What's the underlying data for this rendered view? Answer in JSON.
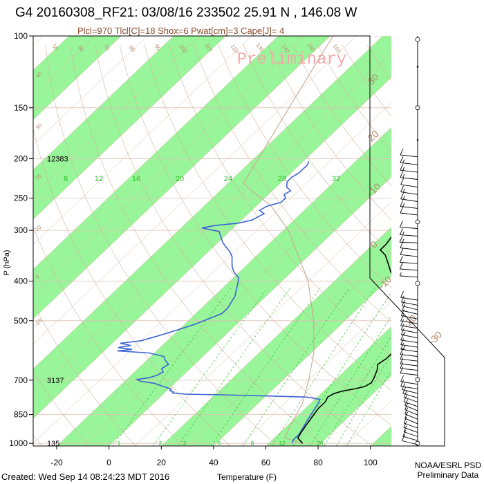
{
  "header": {
    "title": "G4 20160308_RF21: 03/08/16 233502  25.91 N , 146.08 W",
    "indices": "Plcl=970 Tlcl[C]=18 Shox=6 Pwat[cm]=3 Cape[J]= 4"
  },
  "watermark": "Preliminary",
  "footer": {
    "created": "Created: Wed Sep 14 08:24:23 MDT 2016",
    "credit_line1": "NOAA/ESRL PSD",
    "credit_line2": "Preliminary Data"
  },
  "colors": {
    "band": "#99f599",
    "temperature": "#000000",
    "dewpoint": "#3a63d6",
    "isotherm": "#d9b8a0",
    "dry_adiabat": "#d2b39a",
    "mixing_ratio": "#34c234",
    "isobar": "#dcc2b0",
    "parcel": "#c8a98f",
    "label_brown": "#b58b6d",
    "label_green": "#20c020",
    "watermark": "#f2a9a9",
    "wind": "#000000"
  },
  "chart_data": {
    "type": "skew-t",
    "xlabel": "Temperature (F)",
    "ylabel": "P (hPa)",
    "x_ticks": [
      -20,
      0,
      20,
      40,
      60,
      80,
      100
    ],
    "xlim": [
      -29,
      108
    ],
    "y_ticks": [
      100,
      150,
      200,
      250,
      300,
      400,
      500,
      700,
      850,
      1000
    ],
    "ylim": [
      1015,
      100
    ],
    "y_scale": "log",
    "height_labels": [
      {
        "p": 200,
        "text": "12383"
      },
      {
        "p": 700,
        "text": "3137"
      },
      {
        "p": 1000,
        "text": "135"
      }
    ],
    "mixing_ratio_top_labels": [
      "8",
      "12",
      "16",
      "20",
      "24",
      "28",
      "32"
    ],
    "mixing_ratio_bottom_labels": [
      "1",
      "2",
      "3",
      "5",
      "8",
      "12",
      "20"
    ],
    "dry_adiabat_labels": [
      "50",
      "60",
      "70",
      "80",
      "90",
      "100",
      "110",
      "120",
      "130",
      "140",
      "150",
      "160"
    ],
    "isotherm_labels": [
      "30",
      "20",
      "10",
      "0",
      "-10",
      "-20",
      "-30",
      "40",
      "30",
      "20",
      "10",
      "0",
      "-10"
    ],
    "temperature_profile": [
      {
        "p": 1000,
        "t": 73
      },
      {
        "p": 985,
        "t": 71
      },
      {
        "p": 970,
        "t": 69
      },
      {
        "p": 940,
        "t": 68
      },
      {
        "p": 900,
        "t": 67
      },
      {
        "p": 860,
        "t": 66
      },
      {
        "p": 820,
        "t": 65
      },
      {
        "p": 790,
        "t": 65
      },
      {
        "p": 770,
        "t": 64
      },
      {
        "p": 755,
        "t": 65
      },
      {
        "p": 745,
        "t": 67
      },
      {
        "p": 735,
        "t": 71
      },
      {
        "p": 725,
        "t": 74
      },
      {
        "p": 710,
        "t": 75
      },
      {
        "p": 690,
        "t": 74
      },
      {
        "p": 660,
        "t": 72
      },
      {
        "p": 640,
        "t": 70
      },
      {
        "p": 620,
        "t": 71
      },
      {
        "p": 600,
        "t": 71
      },
      {
        "p": 580,
        "t": 72
      },
      {
        "p": 560,
        "t": 72
      },
      {
        "p": 540,
        "t": 72
      },
      {
        "p": 520,
        "t": 70
      },
      {
        "p": 500,
        "t": 66
      },
      {
        "p": 480,
        "t": 62
      },
      {
        "p": 460,
        "t": 58
      },
      {
        "p": 440,
        "t": 53
      },
      {
        "p": 420,
        "t": 50
      },
      {
        "p": 400,
        "t": 44
      },
      {
        "p": 380,
        "t": 38
      },
      {
        "p": 360,
        "t": 33
      },
      {
        "p": 345,
        "t": 29
      },
      {
        "p": 335,
        "t": 25
      },
      {
        "p": 325,
        "t": 25
      },
      {
        "p": 310,
        "t": 24
      },
      {
        "p": 295,
        "t": 21
      },
      {
        "p": 282,
        "t": 19
      },
      {
        "p": 268,
        "t": 17
      },
      {
        "p": 255,
        "t": 15
      },
      {
        "p": 245,
        "t": 14
      },
      {
        "p": 235,
        "t": 12
      },
      {
        "p": 225,
        "t": 9
      },
      {
        "p": 215,
        "t": 7
      },
      {
        "p": 205,
        "t": 6
      },
      {
        "p": 195,
        "t": 4
      },
      {
        "p": 185,
        "t": 1
      }
    ],
    "dewpoint_profile": [
      {
        "p": 1000,
        "t": 69
      },
      {
        "p": 980,
        "t": 68
      },
      {
        "p": 950,
        "t": 68
      },
      {
        "p": 920,
        "t": 67
      },
      {
        "p": 890,
        "t": 66
      },
      {
        "p": 860,
        "t": 65
      },
      {
        "p": 830,
        "t": 64
      },
      {
        "p": 800,
        "t": 63
      },
      {
        "p": 780,
        "t": 62
      },
      {
        "p": 770,
        "t": 56
      },
      {
        "p": 765,
        "t": 40
      },
      {
        "p": 760,
        "t": 22
      },
      {
        "p": 757,
        "t": 8
      },
      {
        "p": 752,
        "t": 3
      },
      {
        "p": 748,
        "t": 3
      },
      {
        "p": 742,
        "t": 1
      },
      {
        "p": 736,
        "t": 1
      },
      {
        "p": 728,
        "t": -2
      },
      {
        "p": 720,
        "t": -5
      },
      {
        "p": 712,
        "t": -8
      },
      {
        "p": 704,
        "t": -14
      },
      {
        "p": 697,
        "t": -16
      },
      {
        "p": 690,
        "t": -12
      },
      {
        "p": 680,
        "t": -10
      },
      {
        "p": 668,
        "t": -9
      },
      {
        "p": 655,
        "t": -11
      },
      {
        "p": 640,
        "t": -10
      },
      {
        "p": 625,
        "t": -13
      },
      {
        "p": 612,
        "t": -15
      },
      {
        "p": 600,
        "t": -22
      },
      {
        "p": 593,
        "t": -35
      },
      {
        "p": 588,
        "t": -30
      },
      {
        "p": 582,
        "t": -36
      },
      {
        "p": 575,
        "t": -32
      },
      {
        "p": 568,
        "t": -37
      },
      {
        "p": 560,
        "t": -30
      },
      {
        "p": 550,
        "t": -27
      },
      {
        "p": 540,
        "t": -24
      },
      {
        "p": 525,
        "t": -20
      },
      {
        "p": 510,
        "t": -16
      },
      {
        "p": 495,
        "t": -13
      },
      {
        "p": 480,
        "t": -10
      },
      {
        "p": 465,
        "t": -10
      },
      {
        "p": 450,
        "t": -11
      },
      {
        "p": 435,
        "t": -12
      },
      {
        "p": 420,
        "t": -14
      },
      {
        "p": 405,
        "t": -16
      },
      {
        "p": 392,
        "t": -18
      },
      {
        "p": 380,
        "t": -22
      },
      {
        "p": 368,
        "t": -25
      },
      {
        "p": 358,
        "t": -27
      },
      {
        "p": 348,
        "t": -29
      },
      {
        "p": 338,
        "t": -32
      },
      {
        "p": 330,
        "t": -35
      },
      {
        "p": 322,
        "t": -38
      },
      {
        "p": 312,
        "t": -41
      },
      {
        "p": 302,
        "t": -44
      },
      {
        "p": 296,
        "t": -52
      },
      {
        "p": 292,
        "t": -48
      },
      {
        "p": 288,
        "t": -40
      },
      {
        "p": 283,
        "t": -36
      },
      {
        "p": 278,
        "t": -35
      },
      {
        "p": 273,
        "t": -34
      },
      {
        "p": 268,
        "t": -37
      },
      {
        "p": 262,
        "t": -36
      },
      {
        "p": 256,
        "t": -32
      },
      {
        "p": 250,
        "t": -32
      },
      {
        "p": 245,
        "t": -34
      },
      {
        "p": 240,
        "t": -33
      },
      {
        "p": 235,
        "t": -36
      },
      {
        "p": 228,
        "t": -38
      },
      {
        "p": 222,
        "t": -38
      },
      {
        "p": 217,
        "t": -37
      },
      {
        "p": 212,
        "t": -37
      },
      {
        "p": 207,
        "t": -37
      },
      {
        "p": 203,
        "t": -38
      }
    ],
    "parcel_path": [
      {
        "p": 1000,
        "t": 73
      },
      {
        "p": 970,
        "t": 64
      },
      {
        "p": 900,
        "t": 61
      },
      {
        "p": 800,
        "t": 57
      },
      {
        "p": 700,
        "t": 50
      },
      {
        "p": 600,
        "t": 41
      },
      {
        "p": 500,
        "t": 28
      },
      {
        "p": 400,
        "t": 10
      },
      {
        "p": 300,
        "t": -18
      },
      {
        "p": 260,
        "t": -35
      },
      {
        "p": 240,
        "t": -48
      },
      {
        "p": 230,
        "t": -54
      },
      {
        "p": 150,
        "t": -67
      },
      {
        "p": 100,
        "t": -79
      }
    ],
    "wind_barbs": [
      {
        "p": 102,
        "type": "calm"
      },
      {
        "p": 119,
        "type": "dot"
      },
      {
        "p": 150,
        "type": "calm"
      },
      {
        "p": 180,
        "type": "dot"
      },
      {
        "p": 198,
        "type": "barb",
        "dir": 255,
        "spd": 10
      },
      {
        "p": 207,
        "type": "barb",
        "dir": 255,
        "spd": 15
      },
      {
        "p": 216,
        "type": "barb",
        "dir": 255,
        "spd": 15
      },
      {
        "p": 225,
        "type": "barb",
        "dir": 255,
        "spd": 15
      },
      {
        "p": 235,
        "type": "barb",
        "dir": 250,
        "spd": 10
      },
      {
        "p": 245,
        "type": "barb",
        "dir": 250,
        "spd": 15
      },
      {
        "p": 255,
        "type": "barb",
        "dir": 250,
        "spd": 15
      },
      {
        "p": 265,
        "type": "barb",
        "dir": 255,
        "spd": 15
      },
      {
        "p": 275,
        "type": "barb",
        "dir": 255,
        "spd": 10
      },
      {
        "p": 286,
        "type": "calm"
      },
      {
        "p": 297,
        "type": "barb",
        "dir": 260,
        "spd": 10
      },
      {
        "p": 310,
        "type": "barb",
        "dir": 260,
        "spd": 15
      },
      {
        "p": 322,
        "type": "barb",
        "dir": 265,
        "spd": 15
      },
      {
        "p": 335,
        "type": "barb",
        "dir": 255,
        "spd": 10
      },
      {
        "p": 348,
        "type": "barb",
        "dir": 255,
        "spd": 10
      },
      {
        "p": 362,
        "type": "barb",
        "dir": 260,
        "spd": 10
      },
      {
        "p": 376,
        "type": "barb",
        "dir": 260,
        "spd": 10
      },
      {
        "p": 391,
        "type": "barb",
        "dir": 260,
        "spd": 5
      },
      {
        "p": 405,
        "type": "calm"
      },
      {
        "p": 445,
        "type": "barb",
        "dir": 250,
        "spd": 10
      },
      {
        "p": 458,
        "type": "barb",
        "dir": 245,
        "spd": 10
      },
      {
        "p": 470,
        "type": "barb",
        "dir": 240,
        "spd": 10
      },
      {
        "p": 482,
        "type": "barb",
        "dir": 240,
        "spd": 10
      },
      {
        "p": 495,
        "type": "barb",
        "dir": 245,
        "spd": 10
      },
      {
        "p": 508,
        "type": "barb",
        "dir": 250,
        "spd": 10
      },
      {
        "p": 522,
        "type": "barb",
        "dir": 250,
        "spd": 10
      },
      {
        "p": 536,
        "type": "barb",
        "dir": 245,
        "spd": 10
      },
      {
        "p": 551,
        "type": "barb",
        "dir": 245,
        "spd": 15
      },
      {
        "p": 566,
        "type": "barb",
        "dir": 250,
        "spd": 10
      },
      {
        "p": 581,
        "type": "barb",
        "dir": 250,
        "spd": 10
      },
      {
        "p": 596,
        "type": "barb",
        "dir": 250,
        "spd": 15
      },
      {
        "p": 612,
        "type": "barb",
        "dir": 255,
        "spd": 10
      },
      {
        "p": 628,
        "type": "barb",
        "dir": 255,
        "spd": 10
      },
      {
        "p": 645,
        "type": "barb",
        "dir": 255,
        "spd": 10
      },
      {
        "p": 662,
        "type": "barb",
        "dir": 255,
        "spd": 10
      },
      {
        "p": 680,
        "type": "barb",
        "dir": 255,
        "spd": 10
      },
      {
        "p": 698,
        "type": "calm"
      },
      {
        "p": 716,
        "type": "barb",
        "dir": 250,
        "spd": 10
      },
      {
        "p": 735,
        "type": "barb",
        "dir": 250,
        "spd": 10
      },
      {
        "p": 754,
        "type": "barb",
        "dir": 240,
        "spd": 10
      },
      {
        "p": 773,
        "type": "barb",
        "dir": 235,
        "spd": 10
      },
      {
        "p": 792,
        "type": "barb",
        "dir": 230,
        "spd": 10
      },
      {
        "p": 812,
        "type": "barb",
        "dir": 230,
        "spd": 10
      },
      {
        "p": 832,
        "type": "barb",
        "dir": 225,
        "spd": 10
      },
      {
        "p": 852,
        "type": "barb",
        "dir": 225,
        "spd": 10
      },
      {
        "p": 873,
        "type": "barb",
        "dir": 225,
        "spd": 10
      },
      {
        "p": 895,
        "type": "barb",
        "dir": 225,
        "spd": 10
      },
      {
        "p": 917,
        "type": "barb",
        "dir": 230,
        "spd": 10
      },
      {
        "p": 940,
        "type": "barb",
        "dir": 230,
        "spd": 10
      },
      {
        "p": 963,
        "type": "barb",
        "dir": 230,
        "spd": 10
      },
      {
        "p": 985,
        "type": "barb",
        "dir": 235,
        "spd": 10
      },
      {
        "p": 1000,
        "type": "calm"
      },
      {
        "p": 1007,
        "type": "barb",
        "dir": 240,
        "spd": 10
      }
    ]
  }
}
